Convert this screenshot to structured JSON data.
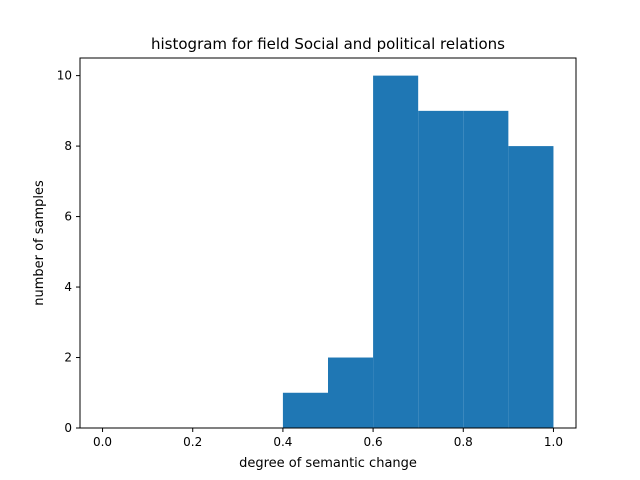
{
  "chart_data": {
    "type": "bar",
    "title": "histogram for field Social and political relations",
    "xlabel": "degree of semantic change",
    "ylabel": "number of samples",
    "xlim": [
      -0.05,
      1.05
    ],
    "ylim": [
      0,
      10.5
    ],
    "xticks": [
      "0.0",
      "0.2",
      "0.4",
      "0.6",
      "0.8",
      "1.0"
    ],
    "yticks": [
      "0",
      "2",
      "4",
      "6",
      "8",
      "10"
    ],
    "grid": false,
    "bar_color": "#1f77b4",
    "bins": [
      {
        "x0": 0.4,
        "x1": 0.5,
        "value": 1
      },
      {
        "x0": 0.5,
        "x1": 0.6,
        "value": 2
      },
      {
        "x0": 0.6,
        "x1": 0.7,
        "value": 10
      },
      {
        "x0": 0.7,
        "x1": 0.8,
        "value": 9
      },
      {
        "x0": 0.8,
        "x1": 0.9,
        "value": 9
      },
      {
        "x0": 0.9,
        "x1": 1.0,
        "value": 8
      }
    ]
  }
}
